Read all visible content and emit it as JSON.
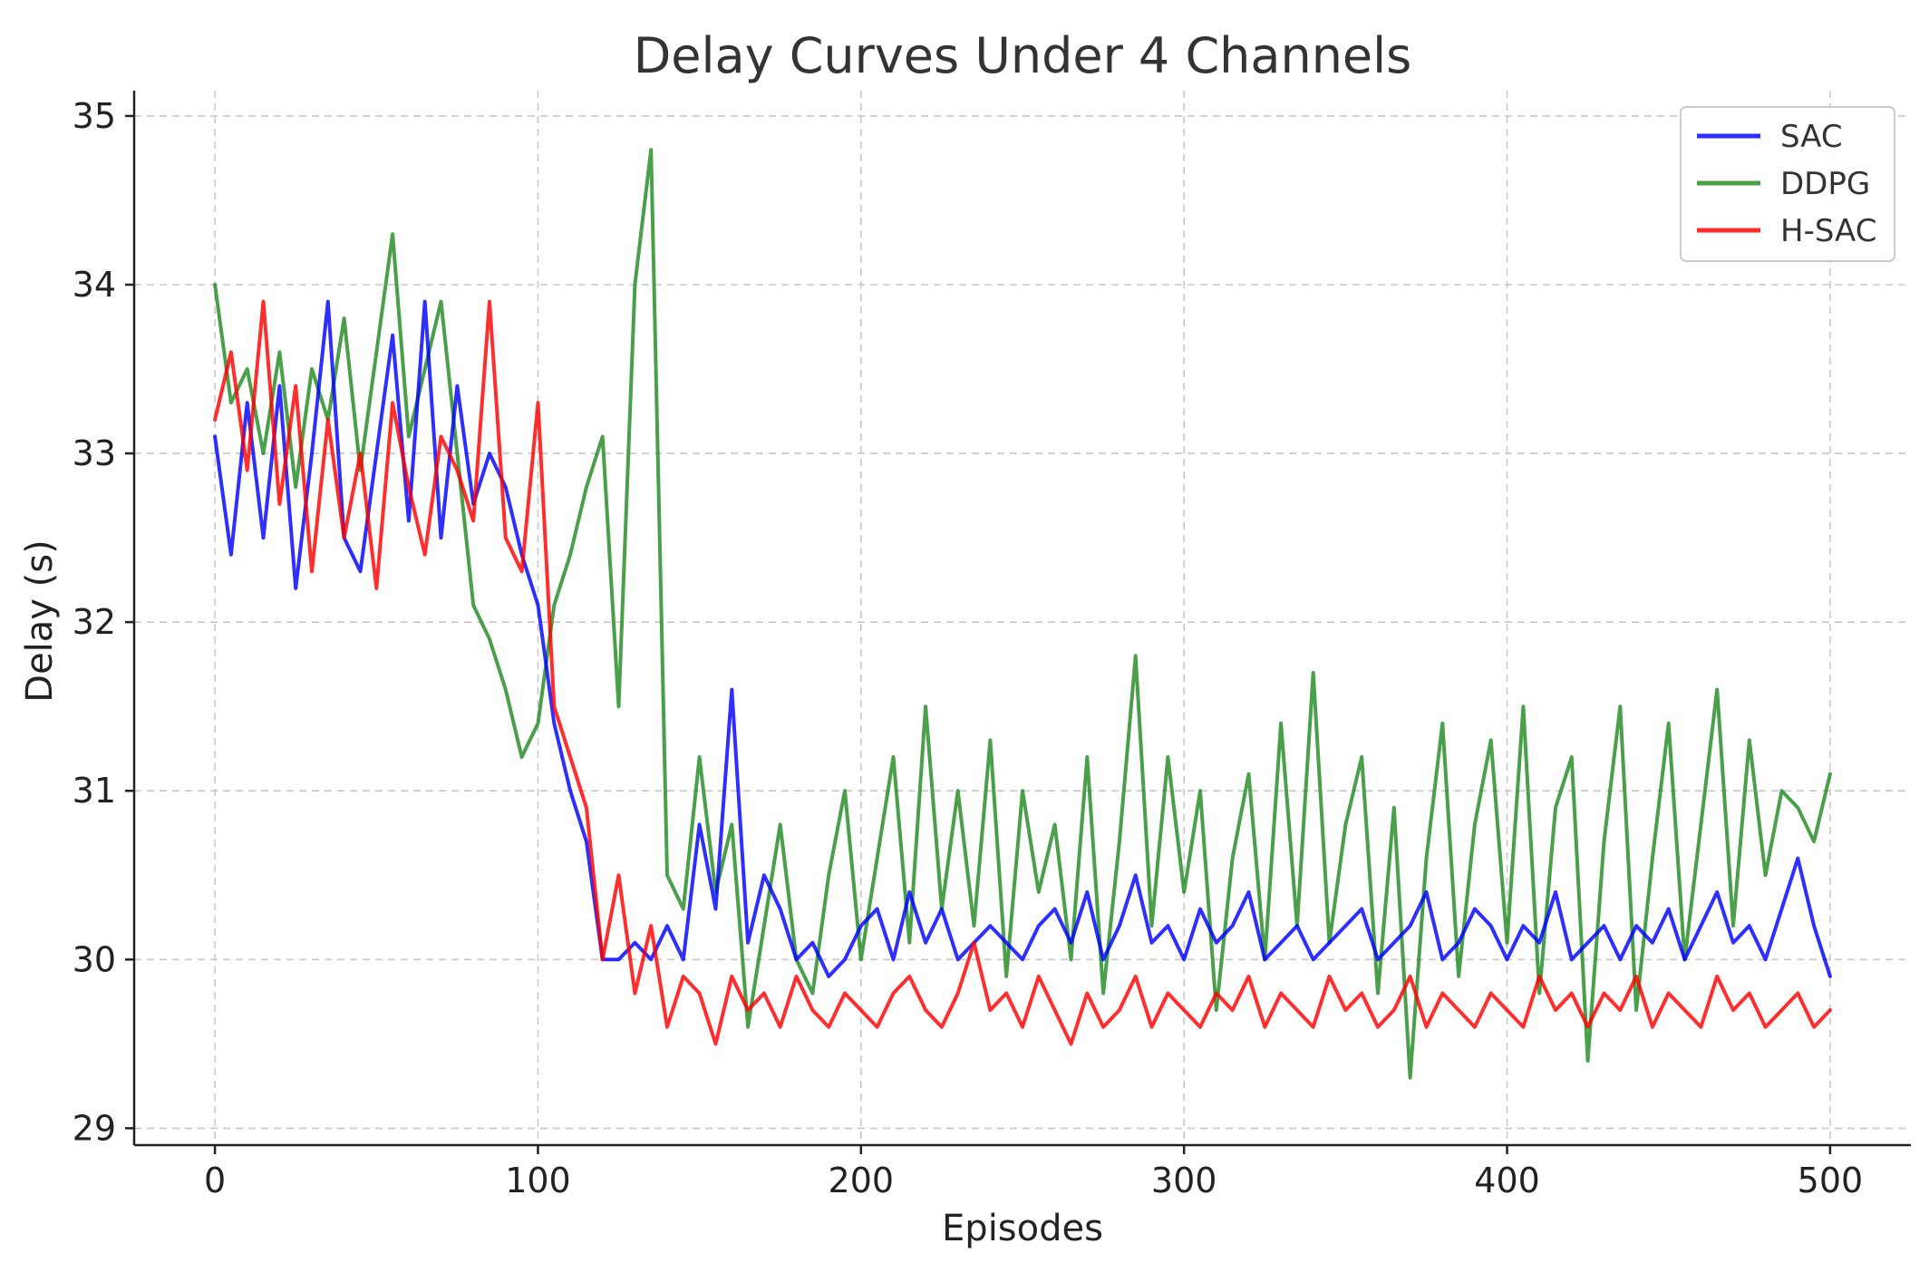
{
  "chart_data": {
    "type": "line",
    "title": "Delay Curves Under 4 Channels",
    "xlabel": "Episodes",
    "ylabel": "Delay (s)",
    "xlim": [
      -25,
      525
    ],
    "ylim": [
      28.9,
      35.15
    ],
    "xticks": [
      0,
      100,
      200,
      300,
      400,
      500
    ],
    "yticks": [
      29,
      30,
      31,
      32,
      33,
      34,
      35
    ],
    "grid": true,
    "legend_position": "top-right",
    "x": [
      0,
      5,
      10,
      15,
      20,
      25,
      30,
      35,
      40,
      45,
      50,
      55,
      60,
      65,
      70,
      75,
      80,
      85,
      90,
      95,
      100,
      105,
      110,
      115,
      120,
      125,
      130,
      135,
      140,
      145,
      150,
      155,
      160,
      165,
      170,
      175,
      180,
      185,
      190,
      195,
      200,
      205,
      210,
      215,
      220,
      225,
      230,
      235,
      240,
      245,
      250,
      255,
      260,
      265,
      270,
      275,
      280,
      285,
      290,
      295,
      300,
      305,
      310,
      315,
      320,
      325,
      330,
      335,
      340,
      345,
      350,
      355,
      360,
      365,
      370,
      375,
      380,
      385,
      390,
      395,
      400,
      405,
      410,
      415,
      420,
      425,
      430,
      435,
      440,
      445,
      450,
      455,
      460,
      465,
      470,
      475,
      480,
      485,
      490,
      495,
      500
    ],
    "series": [
      {
        "name": "SAC",
        "color": "#0000ff",
        "values": [
          33.1,
          32.4,
          33.3,
          32.5,
          33.4,
          32.2,
          33.0,
          33.9,
          32.5,
          32.3,
          33.0,
          33.7,
          32.6,
          33.9,
          32.5,
          33.4,
          32.7,
          33.0,
          32.8,
          32.4,
          32.1,
          31.4,
          31.0,
          30.7,
          30.0,
          30.0,
          30.1,
          30.0,
          30.2,
          30.0,
          30.8,
          30.3,
          31.6,
          30.1,
          30.5,
          30.3,
          30.0,
          30.1,
          29.9,
          30.0,
          30.2,
          30.3,
          30.0,
          30.4,
          30.1,
          30.3,
          30.0,
          30.1,
          30.2,
          30.1,
          30.0,
          30.2,
          30.3,
          30.1,
          30.4,
          30.0,
          30.2,
          30.5,
          30.1,
          30.2,
          30.0,
          30.3,
          30.1,
          30.2,
          30.4,
          30.0,
          30.1,
          30.2,
          30.0,
          30.1,
          30.2,
          30.3,
          30.0,
          30.1,
          30.2,
          30.4,
          30.0,
          30.1,
          30.3,
          30.2,
          30.0,
          30.2,
          30.1,
          30.4,
          30.0,
          30.1,
          30.2,
          30.0,
          30.2,
          30.1,
          30.3,
          30.0,
          30.2,
          30.4,
          30.1,
          30.2,
          30.0,
          30.3,
          30.6,
          30.2,
          29.9
        ]
      },
      {
        "name": "DDPG",
        "color": "#228b22",
        "values": [
          34.0,
          33.3,
          33.5,
          33.0,
          33.6,
          32.8,
          33.5,
          33.2,
          33.8,
          32.9,
          33.6,
          34.3,
          33.1,
          33.5,
          33.9,
          33.0,
          32.1,
          31.9,
          31.6,
          31.2,
          31.4,
          32.1,
          32.4,
          32.8,
          33.1,
          31.5,
          34.0,
          34.8,
          30.5,
          30.3,
          31.2,
          30.4,
          30.8,
          29.6,
          30.2,
          30.8,
          30.0,
          29.8,
          30.5,
          31.0,
          30.0,
          30.6,
          31.2,
          30.1,
          31.5,
          30.3,
          31.0,
          30.2,
          31.3,
          29.9,
          31.0,
          30.4,
          30.8,
          30.0,
          31.2,
          29.8,
          30.7,
          31.8,
          30.2,
          31.2,
          30.4,
          31.0,
          29.7,
          30.6,
          31.1,
          30.0,
          31.4,
          30.2,
          31.7,
          30.1,
          30.8,
          31.2,
          29.8,
          30.9,
          29.3,
          30.6,
          31.4,
          29.9,
          30.8,
          31.3,
          30.1,
          31.5,
          29.8,
          30.9,
          31.2,
          29.4,
          30.7,
          31.5,
          29.7,
          30.6,
          31.4,
          30.0,
          30.8,
          31.6,
          30.2,
          31.3,
          30.5,
          31.0,
          30.9,
          30.7,
          31.1
        ]
      },
      {
        "name": "H-SAC",
        "color": "#ff0000",
        "values": [
          33.2,
          33.6,
          32.9,
          33.9,
          32.7,
          33.4,
          32.3,
          33.2,
          32.5,
          33.0,
          32.2,
          33.3,
          32.8,
          32.4,
          33.1,
          32.9,
          32.6,
          33.9,
          32.5,
          32.3,
          33.3,
          31.5,
          31.2,
          30.9,
          30.0,
          30.5,
          29.8,
          30.2,
          29.6,
          29.9,
          29.8,
          29.5,
          29.9,
          29.7,
          29.8,
          29.6,
          29.9,
          29.7,
          29.6,
          29.8,
          29.7,
          29.6,
          29.8,
          29.9,
          29.7,
          29.6,
          29.8,
          30.1,
          29.7,
          29.8,
          29.6,
          29.9,
          29.7,
          29.5,
          29.8,
          29.6,
          29.7,
          29.9,
          29.6,
          29.8,
          29.7,
          29.6,
          29.8,
          29.7,
          29.9,
          29.6,
          29.8,
          29.7,
          29.6,
          29.9,
          29.7,
          29.8,
          29.6,
          29.7,
          29.9,
          29.6,
          29.8,
          29.7,
          29.6,
          29.8,
          29.7,
          29.6,
          29.9,
          29.7,
          29.8,
          29.6,
          29.8,
          29.7,
          29.9,
          29.6,
          29.8,
          29.7,
          29.6,
          29.9,
          29.7,
          29.8,
          29.6,
          29.7,
          29.8,
          29.6,
          29.7
        ]
      }
    ]
  }
}
